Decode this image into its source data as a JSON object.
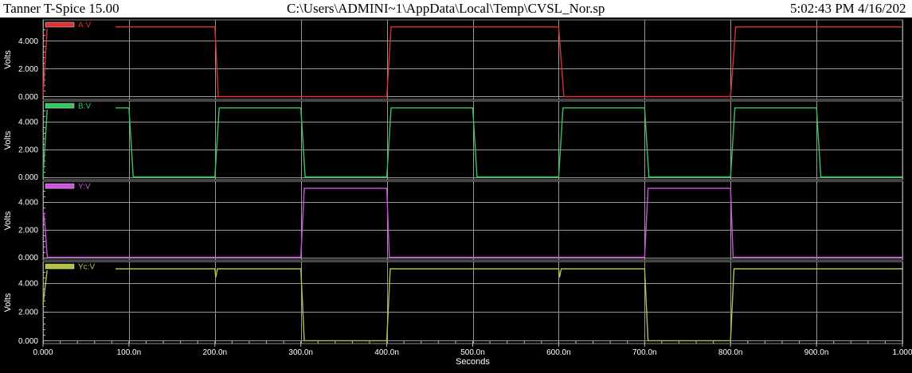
{
  "header": {
    "app_title": "Tanner T-Spice 15.00",
    "file_path": "C:\\Users\\ADMINI~1\\AppData\\Local\\Temp\\CVSL_Nor.sp",
    "timestamp": "5:02:43 PM 4/16/202"
  },
  "chart_data": [
    {
      "type": "line",
      "series": [
        {
          "name": "A:V",
          "color": "#e03030",
          "x": [
            0,
            5,
            200,
            204,
            400,
            405,
            600,
            606,
            800,
            806,
            1000
          ],
          "y": [
            0,
            5,
            5,
            0,
            0,
            5,
            5,
            0,
            0,
            5,
            5
          ]
        }
      ],
      "ylabel": "Volts",
      "yticks": [
        "0.000",
        "2.000",
        "4.000"
      ],
      "ylim": [
        -0.2,
        5.5
      ],
      "xlim": [
        0,
        1000
      ],
      "grid": true
    },
    {
      "type": "line",
      "series": [
        {
          "name": "B:V",
          "color": "#30c860",
          "x": [
            0,
            5,
            100,
            105,
            200,
            205,
            300,
            305,
            400,
            405,
            500,
            505,
            600,
            605,
            700,
            705,
            800,
            805,
            900,
            905,
            1000
          ],
          "y": [
            0,
            5,
            5,
            0,
            0,
            5,
            5,
            0,
            0,
            5,
            5,
            0,
            0,
            5,
            5,
            0,
            0,
            5,
            5,
            0,
            0
          ]
        }
      ],
      "ylabel": "Volts",
      "yticks": [
        "0.000",
        "2.000",
        "4.000"
      ],
      "ylim": [
        -0.2,
        5.5
      ],
      "xlim": [
        0,
        1000
      ],
      "grid": true
    },
    {
      "type": "line",
      "series": [
        {
          "name": "Y:V",
          "color": "#d050e0",
          "x": [
            0,
            2,
            5,
            300,
            304,
            400,
            403,
            700,
            704,
            800,
            803,
            1000
          ],
          "y": [
            3.5,
            2.5,
            0,
            0,
            5,
            5,
            0,
            0,
            5,
            5,
            0,
            0
          ]
        }
      ],
      "ylabel": "Volts",
      "yticks": [
        "0.000",
        "2.000",
        "4.000"
      ],
      "ylim": [
        -0.2,
        5.5
      ],
      "xlim": [
        0,
        1000
      ],
      "grid": true
    },
    {
      "type": "line",
      "series": [
        {
          "name": "Yc:V",
          "color": "#b8c040",
          "x": [
            0,
            5,
            200,
            201,
            203,
            300,
            304,
            400,
            404,
            600,
            601,
            603,
            700,
            704,
            800,
            804,
            1000
          ],
          "y": [
            2.5,
            5,
            5,
            4.4,
            5,
            5,
            0,
            0,
            5,
            5,
            4.4,
            5,
            5,
            0,
            0,
            5,
            5
          ]
        }
      ],
      "ylabel": "Volts",
      "yticks": [
        "0.000",
        "2.000",
        "4.000"
      ],
      "ylim": [
        -0.2,
        5.5
      ],
      "xlim": [
        0,
        1000
      ],
      "grid": true,
      "xticks": [
        "0.000",
        "100.0n",
        "200.0n",
        "300.0n",
        "400.0n",
        "500.0n",
        "600.0n",
        "700.0n",
        "800.0n",
        "900.0n",
        "1.000"
      ],
      "xlabel": "Seconds"
    }
  ]
}
